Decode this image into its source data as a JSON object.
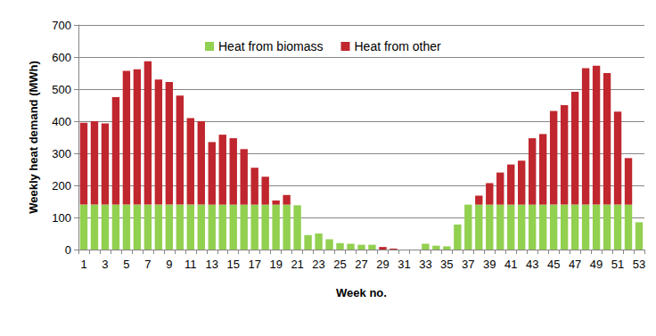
{
  "chart_data": {
    "type": "bar",
    "x_label": "Week no.",
    "y_label": "Weekly heat demand (MWh)",
    "categories": [
      "1",
      null,
      "3",
      null,
      "5",
      null,
      "7",
      null,
      "9",
      null,
      "11",
      null,
      "13",
      null,
      "15",
      null,
      "17",
      null,
      "19",
      null,
      "21",
      null,
      "23",
      null,
      "25",
      null,
      "27",
      null,
      "29",
      null,
      "31",
      null,
      "33",
      null,
      "35",
      null,
      "37",
      null,
      "39",
      null,
      "41",
      null,
      "43",
      null,
      "45",
      null,
      "47",
      null,
      "49",
      null,
      "51",
      null,
      "53"
    ],
    "series": [
      {
        "name": "Heat from biomass",
        "color": "#92d050",
        "values": [
          140,
          140,
          140,
          140,
          140,
          140,
          140,
          140,
          140,
          140,
          140,
          140,
          140,
          140,
          140,
          140,
          140,
          140,
          140,
          140,
          138,
          45,
          50,
          32,
          20,
          18,
          15,
          15,
          0,
          0,
          0,
          0,
          18,
          12,
          10,
          78,
          140,
          140,
          140,
          140,
          140,
          140,
          140,
          140,
          140,
          140,
          140,
          140,
          140,
          140,
          140,
          140,
          85
        ]
      },
      {
        "name": "Heat from other",
        "color": "#c0262d",
        "values": [
          255,
          260,
          253,
          335,
          417,
          422,
          447,
          390,
          382,
          340,
          270,
          260,
          195,
          218,
          207,
          173,
          115,
          87,
          13,
          30,
          0,
          0,
          0,
          0,
          0,
          0,
          0,
          0,
          8,
          3,
          0,
          0,
          0,
          0,
          0,
          0,
          0,
          28,
          67,
          100,
          125,
          137,
          207,
          220,
          292,
          310,
          352,
          425,
          433,
          410,
          290,
          145,
          0
        ]
      }
    ],
    "ylim": [
      0,
      700
    ],
    "yticks": [
      0,
      100,
      200,
      300,
      400,
      500,
      600,
      700
    ],
    "stacked": true,
    "grid": true,
    "legend": "top"
  }
}
